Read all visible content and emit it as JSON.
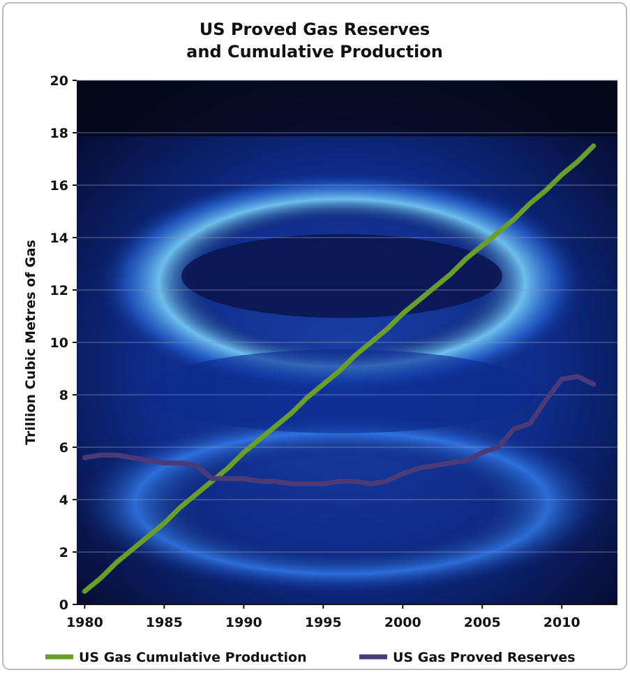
{
  "chart_data": {
    "type": "line",
    "title": "US Proved Gas Reserves",
    "subtitle": "and Cumulative Production",
    "y_label": "Trillion Cubic Metres of Gas",
    "x": [
      1980,
      1981,
      1982,
      1983,
      1984,
      1985,
      1986,
      1987,
      1988,
      1989,
      1990,
      1991,
      1992,
      1993,
      1994,
      1995,
      1996,
      1997,
      1998,
      1999,
      2000,
      2001,
      2002,
      2003,
      2004,
      2005,
      2006,
      2007,
      2008,
      2009,
      2010,
      2011,
      2012
    ],
    "series": [
      {
        "name": "US Gas Cumulative Production",
        "color": "#6a9e2a",
        "values": [
          0.5,
          1.0,
          1.6,
          2.1,
          2.6,
          3.1,
          3.7,
          4.2,
          4.7,
          5.2,
          5.8,
          6.3,
          6.8,
          7.3,
          7.9,
          8.4,
          8.9,
          9.5,
          10.0,
          10.5,
          11.1,
          11.6,
          12.1,
          12.6,
          13.2,
          13.7,
          14.2,
          14.7,
          15.3,
          15.8,
          16.4,
          16.9,
          17.5
        ]
      },
      {
        "name": "US Gas Proved Reserves",
        "color": "#4a3a78",
        "values": [
          5.6,
          5.7,
          5.7,
          5.6,
          5.5,
          5.4,
          5.4,
          5.3,
          4.8,
          4.8,
          4.8,
          4.7,
          4.7,
          4.6,
          4.6,
          4.6,
          4.7,
          4.7,
          4.6,
          4.7,
          5.0,
          5.2,
          5.3,
          5.4,
          5.5,
          5.8,
          6.0,
          6.7,
          6.9,
          7.8,
          8.6,
          8.7,
          8.4
        ]
      }
    ],
    "xlim": [
      1979.5,
      2013.5
    ],
    "xticks": [
      1980,
      1985,
      1990,
      1995,
      2000,
      2005,
      2010
    ],
    "ylim": [
      0,
      20
    ],
    "yticks": [
      0,
      2,
      4,
      6,
      8,
      10,
      12,
      14,
      16,
      18,
      20
    ],
    "grid": true
  }
}
